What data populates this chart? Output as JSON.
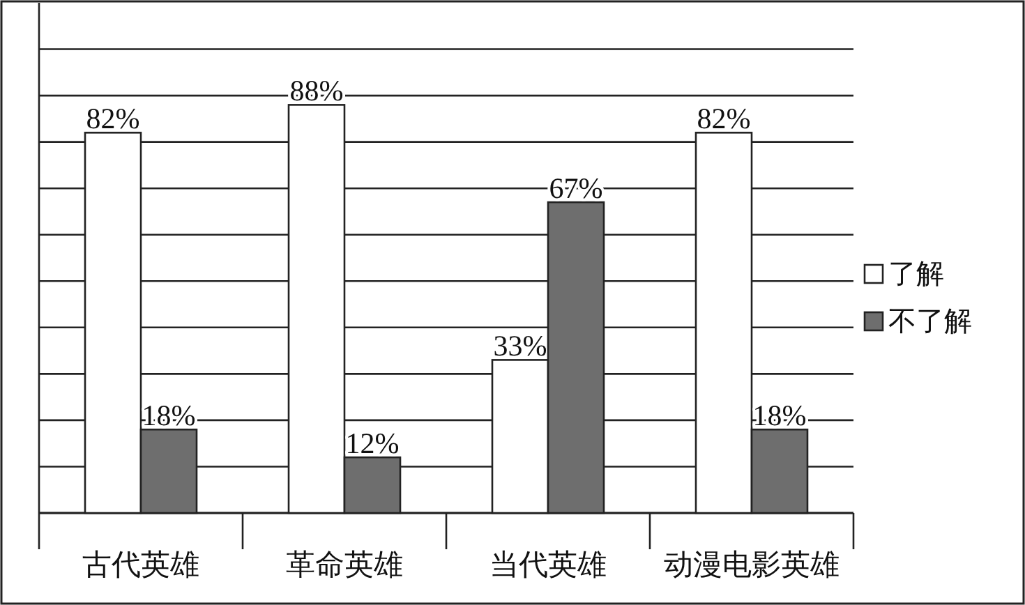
{
  "chart_data": {
    "type": "bar",
    "categories": [
      "古代英雄",
      "革命英雄",
      "当代英雄",
      "动漫电影英雄"
    ],
    "series": [
      {
        "name": "了解",
        "color": "#ffffff",
        "values": [
          82,
          88,
          33,
          82
        ],
        "value_labels": [
          "82%",
          "88%",
          "33%",
          "82%"
        ]
      },
      {
        "name": "不了解",
        "color": "#6e6e6e",
        "values": [
          18,
          12,
          67,
          18
        ],
        "value_labels": [
          "18%",
          "12%",
          "67%",
          "18%"
        ]
      }
    ],
    "grid": "y",
    "legend": "right",
    "tick_labels": "x"
  }
}
